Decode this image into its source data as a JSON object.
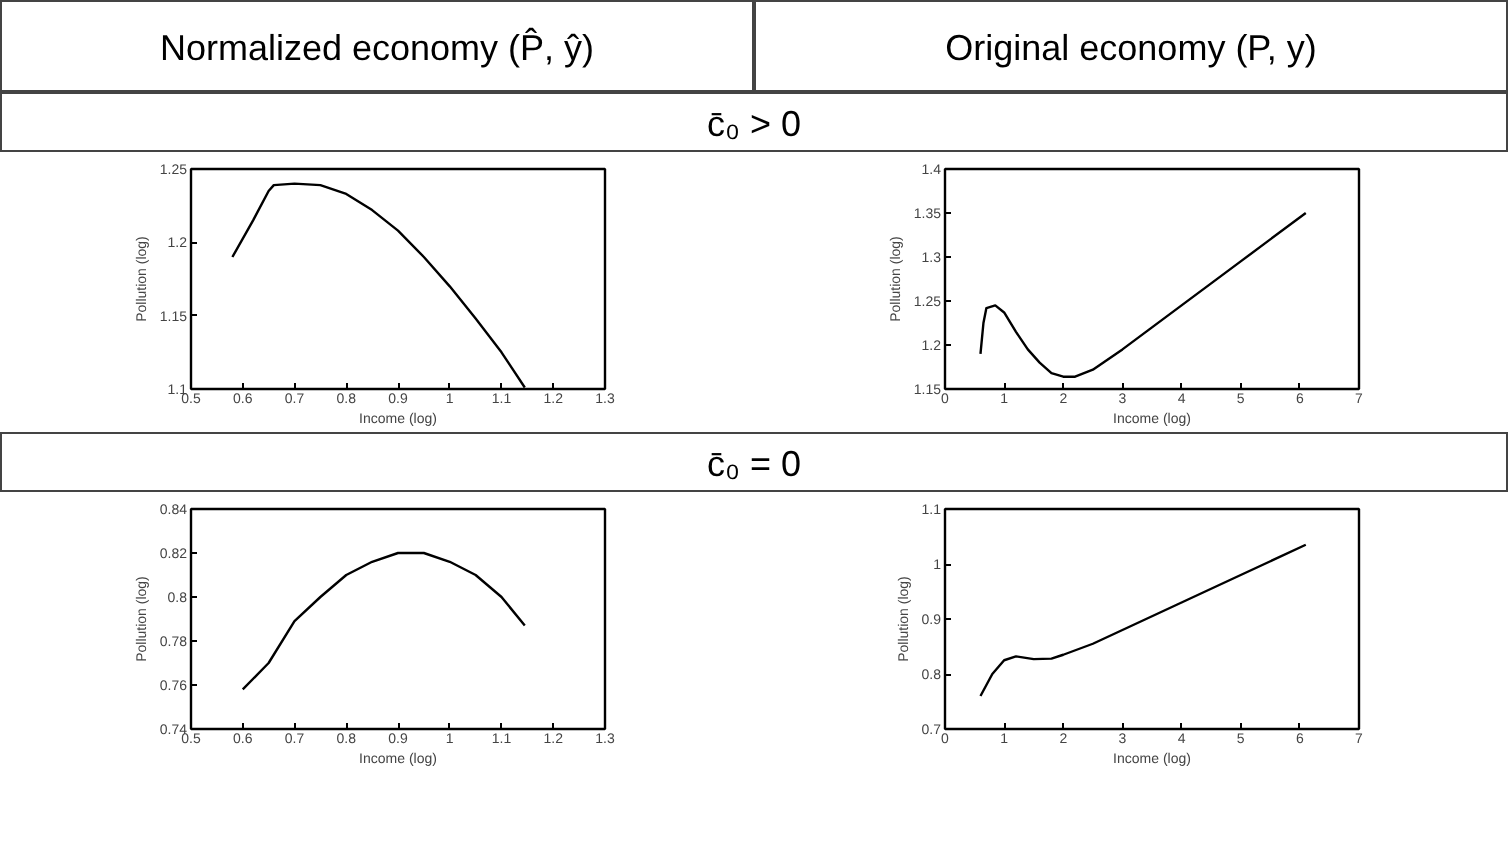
{
  "chart_data": [
    {
      "type": "line",
      "xlabel": "Income (log)",
      "ylabel": "Pollution (log)",
      "annotations": [
        "Normalized economy (P̂, ŷ)",
        "c̄₀ > 0"
      ],
      "xlim": [
        0.5,
        1.3
      ],
      "ylim": [
        1.1,
        1.25
      ],
      "xticks": [
        0.5,
        0.6,
        0.7,
        0.8,
        0.9,
        1,
        1.1,
        1.2,
        1.3
      ],
      "yticks": [
        1.1,
        1.15,
        1.2,
        1.25
      ],
      "marker": "none",
      "line_style": "solid",
      "series": [
        {
          "color": "#000000",
          "x": [
            0.58,
            0.62,
            0.65,
            0.66,
            0.7,
            0.75,
            0.8,
            0.85,
            0.9,
            0.95,
            1.0,
            1.05,
            1.1,
            1.145
          ],
          "values": [
            1.19,
            1.215,
            1.235,
            1.239,
            1.24,
            1.239,
            1.233,
            1.222,
            1.208,
            1.19,
            1.17,
            1.148,
            1.125,
            1.101
          ]
        }
      ]
    },
    {
      "type": "line",
      "xlabel": "Income (log)",
      "ylabel": "Pollution (log)",
      "annotations": [
        "Original economy (P, y)"
      ],
      "xlim": [
        0,
        7
      ],
      "ylim": [
        1.15,
        1.4
      ],
      "xticks": [
        0,
        1,
        2,
        3,
        4,
        5,
        6,
        7
      ],
      "yticks": [
        1.15,
        1.2,
        1.25,
        1.3,
        1.35,
        1.4
      ],
      "marker": "none",
      "line_style": "solid",
      "series": [
        {
          "color": "#000000",
          "x": [
            0.6,
            0.65,
            0.7,
            0.85,
            1.0,
            1.2,
            1.4,
            1.6,
            1.8,
            2.0,
            2.2,
            2.5,
            3,
            3.5,
            4,
            4.5,
            5,
            5.5,
            6.1
          ],
          "values": [
            1.19,
            1.225,
            1.242,
            1.245,
            1.237,
            1.215,
            1.195,
            1.18,
            1.168,
            1.164,
            1.164,
            1.172,
            1.195,
            1.22,
            1.245,
            1.27,
            1.295,
            1.32,
            1.35
          ]
        }
      ]
    },
    {
      "type": "line",
      "xlabel": "Income (log)",
      "ylabel": "Pollution (log)",
      "annotations": [
        "c̄₀ = 0"
      ],
      "xlim": [
        0.5,
        1.3
      ],
      "ylim": [
        0.74,
        0.84
      ],
      "xticks": [
        0.5,
        0.6,
        0.7,
        0.8,
        0.9,
        1,
        1.1,
        1.2,
        1.3
      ],
      "yticks": [
        0.74,
        0.76,
        0.78,
        0.8,
        0.82,
        0.84
      ],
      "marker": "none",
      "line_style": "solid",
      "series": [
        {
          "color": "#000000",
          "x": [
            0.6,
            0.65,
            0.7,
            0.75,
            0.8,
            0.85,
            0.9,
            0.95,
            1.0,
            1.05,
            1.1,
            1.145
          ],
          "values": [
            0.758,
            0.77,
            0.789,
            0.8,
            0.81,
            0.816,
            0.82,
            0.82,
            0.816,
            0.81,
            0.8,
            0.787
          ]
        }
      ]
    },
    {
      "type": "line",
      "xlabel": "Income (log)",
      "ylabel": "Pollution (log)",
      "xlim": [
        0,
        7
      ],
      "ylim": [
        0.7,
        1.1
      ],
      "xticks": [
        0,
        1,
        2,
        3,
        4,
        5,
        6,
        7
      ],
      "yticks": [
        0.7,
        0.8,
        0.9,
        1,
        1.1
      ],
      "marker": "none",
      "line_style": "solid",
      "series": [
        {
          "color": "#000000",
          "x": [
            0.6,
            0.8,
            1.0,
            1.2,
            1.5,
            1.8,
            2.0,
            2.5,
            3,
            4,
            5,
            6.1
          ],
          "values": [
            0.76,
            0.8,
            0.825,
            0.832,
            0.827,
            0.828,
            0.835,
            0.855,
            0.88,
            0.93,
            0.98,
            1.035
          ]
        }
      ]
    }
  ]
}
